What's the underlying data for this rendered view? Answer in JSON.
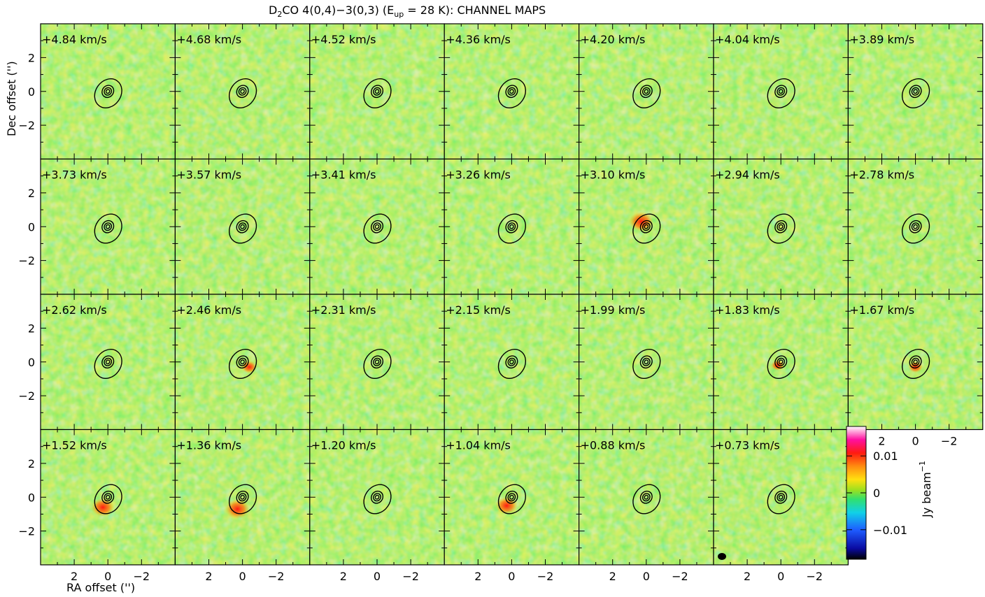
{
  "chart_data": {
    "type": "heatmap",
    "title_parts": {
      "molecule_main": "D",
      "molecule_sub": "2",
      "molecule_rest": "CO 4(0,4)−3(0,3) (E",
      "eup_sub": "up",
      "eup_rest": " = 28 K): CHANNEL MAPS"
    },
    "xlabel": "RA offset ('')",
    "ylabel": "Dec offset ('')",
    "x_ticks": [
      2,
      0,
      -2
    ],
    "y_ticks": [
      2,
      0,
      -2
    ],
    "x_tick_labels": [
      "2",
      "0",
      "−2"
    ],
    "y_tick_labels": [
      "2",
      "0",
      "−2"
    ],
    "xlim": [
      4,
      -4
    ],
    "ylim": [
      -4,
      4
    ],
    "velocity_unit": "km/s",
    "channels": [
      {
        "v": "+4.84",
        "red_peak": null
      },
      {
        "v": "+4.68",
        "red_peak": null
      },
      {
        "v": "+4.52",
        "red_peak": null
      },
      {
        "v": "+4.36",
        "red_peak": null
      },
      {
        "v": "+4.20",
        "red_peak": null
      },
      {
        "v": "+4.04",
        "red_peak": null
      },
      {
        "v": "+3.89",
        "red_peak": null
      },
      {
        "v": "+3.73",
        "red_peak": null
      },
      {
        "v": "+3.57",
        "red_peak": null
      },
      {
        "v": "+3.41",
        "red_peak": null
      },
      {
        "v": "+3.26",
        "red_peak": null
      },
      {
        "v": "+3.10",
        "red_peak": {
          "x": 0.3,
          "y": 0.3,
          "level": 0.013
        }
      },
      {
        "v": "+2.94",
        "red_peak": null
      },
      {
        "v": "+2.78",
        "red_peak": null
      },
      {
        "v": "+2.62",
        "red_peak": null
      },
      {
        "v": "+2.46",
        "red_peak": {
          "x": -0.4,
          "y": -0.3,
          "level": 0.006
        }
      },
      {
        "v": "+2.31",
        "red_peak": null
      },
      {
        "v": "+2.15",
        "red_peak": null
      },
      {
        "v": "+1.99",
        "red_peak": null
      },
      {
        "v": "+1.83",
        "red_peak": {
          "x": 0.2,
          "y": -0.2,
          "level": 0.004
        }
      },
      {
        "v": "+1.67",
        "red_peak": {
          "x": 0.0,
          "y": -0.3,
          "level": 0.005
        }
      },
      {
        "v": "+1.52",
        "red_peak": {
          "x": 0.3,
          "y": -0.6,
          "level": 0.012
        }
      },
      {
        "v": "+1.36",
        "red_peak": {
          "x": 0.3,
          "y": -0.7,
          "level": 0.013
        }
      },
      {
        "v": "+1.20",
        "red_peak": null
      },
      {
        "v": "+1.04",
        "red_peak": {
          "x": 0.3,
          "y": -0.5,
          "level": 0.011
        }
      },
      {
        "v": "+0.88",
        "red_peak": null
      },
      {
        "v": "+0.73",
        "red_peak": null
      }
    ],
    "grid_columns": 7,
    "colorbar": {
      "label_main": "Jy beam",
      "label_exp": "−1",
      "range": [
        -0.018,
        0.018
      ],
      "ticks": [
        0.01,
        0,
        -0.01
      ],
      "tick_labels": [
        "0.01",
        "0",
        "−0.01"
      ]
    },
    "contours_note": "continuum contours centered at (0,0)",
    "colors": {
      "background": "#6ee03c",
      "noise_high": "#d8e81e",
      "noise_low": "#40dc6e",
      "peak": "#ff2a10",
      "contour": "#000000"
    }
  }
}
